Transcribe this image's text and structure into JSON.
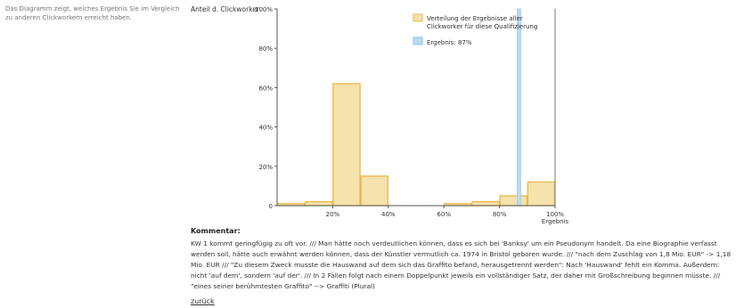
{
  "side_note": "Das Diagramm zeigt, welches Ergebnis Sie im Vergleich zu anderen Clickworkern erreicht haben.",
  "chart_data": {
    "type": "bar",
    "ylabel": "Anteil d. Clickworker",
    "xlabel": "Ergebnis",
    "xlim": [
      0,
      100
    ],
    "ylim": [
      0,
      100
    ],
    "x_ticks": [
      "20%",
      "40%",
      "60%",
      "80%",
      "100%"
    ],
    "y_ticks": [
      "0",
      "20%",
      "40%",
      "60%",
      "80%",
      "100%"
    ],
    "bin_width": 10,
    "bins": [
      0,
      10,
      20,
      30,
      40,
      50,
      60,
      70,
      80,
      90
    ],
    "series": [
      {
        "name": "Verteilung der Ergebnisse aller Clickworker für diese Qualifizierung",
        "values": [
          1,
          2,
          62,
          15,
          0,
          0,
          1,
          2,
          5,
          12
        ],
        "color": "#f5e2ac",
        "edge_color": "#e8b84a"
      },
      {
        "name": "Ergebnis: 87%",
        "value": 87,
        "color": "#b9dcf2",
        "edge_color": "#8cc2e6"
      }
    ],
    "legend_position": "top-right",
    "grid": false
  },
  "comment": {
    "heading": "Kommentar:",
    "text": "KW 1 kommt geringfügig zu oft vor. /// Man hätte noch verdeutlichen können, dass es sich bei 'Banksy' um ein Pseudonym handelt. Da eine Biographie verfasst werden soll, hätte auch erwähnt werden können, dass der Künstler vermutlich ca. 1974 in Bristol geboren wurde. /// \"nach dem Zuschlag von 1,8 Mio. EUR\" -> 1,18 Mio. EUR /// \"Zu diesem Zweck musste die Hauswand auf dem sich das Graffito befand, herausgetrennt werden\": Nach 'Hauswand' fehlt ein Komma. Außerdem: nicht 'auf dem', sondern 'auf der'. /// In 2 Fällen folgt nach einem Doppelpunkt jeweils ein vollständiger Satz, der daher mit Großschreibung beginnen müsste. /// \"eines seiner berühmtesten Graffito\" --> Graffiti (Plural)"
  },
  "back_link": "zurück"
}
